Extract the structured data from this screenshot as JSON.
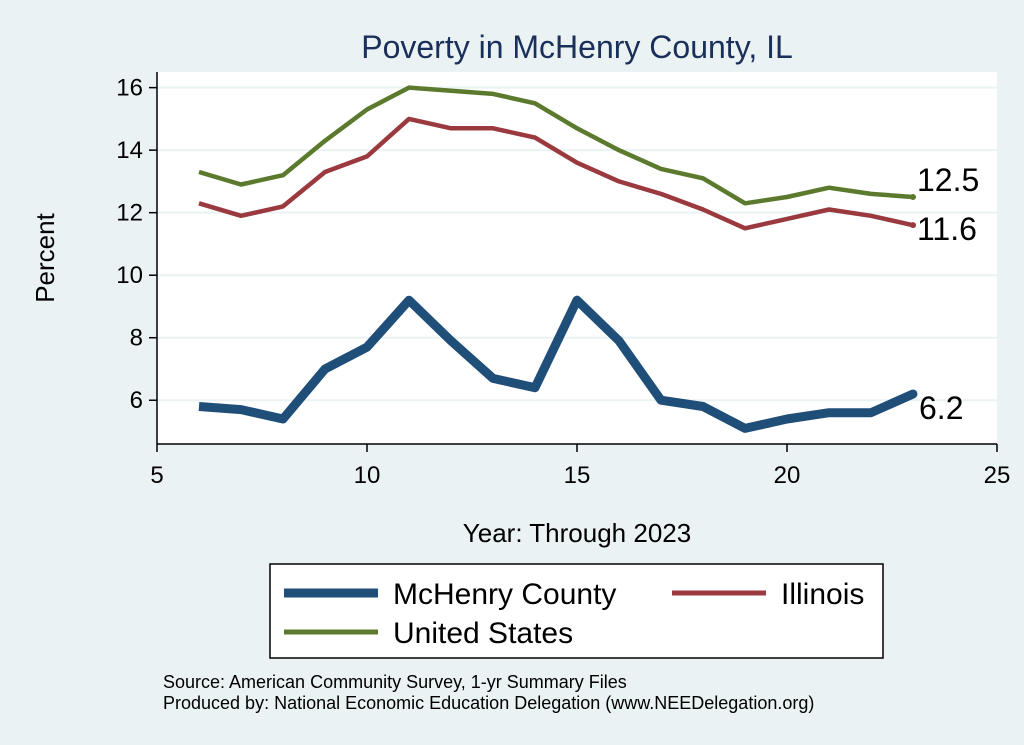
{
  "chart_data": {
    "type": "line",
    "title": "Poverty in McHenry County, IL",
    "xlabel": "Year: Through 2023",
    "ylabel": "Percent",
    "xlim": [
      5,
      25
    ],
    "ylim": [
      4.6,
      16.5
    ],
    "xticks": [
      5,
      10,
      15,
      20,
      25
    ],
    "yticks": [
      6,
      8,
      10,
      12,
      14,
      16
    ],
    "grid": true,
    "legend_placement": "bottom",
    "series": [
      {
        "name": "McHenry County",
        "color": "#1f4e79",
        "x": [
          6,
          7,
          8,
          9,
          10,
          11,
          12,
          13,
          14,
          15,
          16,
          17,
          18,
          19,
          20,
          21,
          22,
          23
        ],
        "values": [
          5.8,
          5.7,
          5.4,
          7.0,
          7.7,
          9.2,
          7.9,
          6.7,
          6.4,
          9.2,
          7.9,
          6.0,
          5.8,
          5.1,
          5.4,
          5.6,
          5.6,
          6.2
        ],
        "end_label": "6.2"
      },
      {
        "name": "Illinois",
        "color": "#9a3a3f",
        "x": [
          6,
          7,
          8,
          9,
          10,
          11,
          12,
          13,
          14,
          15,
          16,
          17,
          18,
          19,
          20,
          21,
          22,
          23
        ],
        "values": [
          12.3,
          11.9,
          12.2,
          13.3,
          13.8,
          15.0,
          14.7,
          14.7,
          14.4,
          13.6,
          13.0,
          12.6,
          12.1,
          11.5,
          11.8,
          12.1,
          11.9,
          11.6
        ],
        "end_label": "11.6"
      },
      {
        "name": "United States",
        "color": "#5b7a2d",
        "x": [
          6,
          7,
          8,
          9,
          10,
          11,
          12,
          13,
          14,
          15,
          16,
          17,
          18,
          19,
          20,
          21,
          22,
          23
        ],
        "values": [
          13.3,
          12.9,
          13.2,
          14.3,
          15.3,
          16.0,
          15.9,
          15.8,
          15.5,
          14.7,
          14.0,
          13.4,
          13.1,
          12.3,
          12.5,
          12.8,
          12.6,
          12.5
        ],
        "end_label": "12.5"
      }
    ],
    "notes": [
      "Source: American Community Survey, 1-yr Summary Files",
      "Produced by: National Economic Education Delegation (www.NEEDelegation.org)"
    ]
  }
}
